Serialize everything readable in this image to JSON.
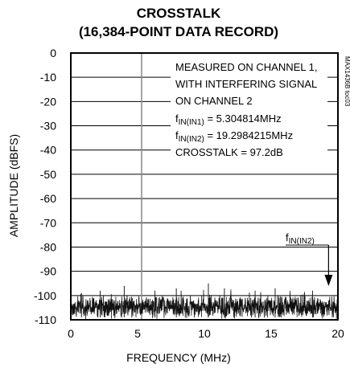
{
  "chart_data": {
    "type": "line",
    "title_line1": "CROSSTALK",
    "title_line2": "(16,384-POINT DATA RECORD)",
    "xlabel": "FREQUENCY (MHz)",
    "ylabel": "AMPLITUDE (dBFS)",
    "xlim": [
      0,
      20
    ],
    "ylim": [
      -110,
      0
    ],
    "x_ticks": [
      "0",
      "5",
      "10",
      "15",
      "20"
    ],
    "y_ticks": [
      "0",
      "-10",
      "-20",
      "-30",
      "-40",
      "-50",
      "-60",
      "-70",
      "-80",
      "-90",
      "-100",
      "-110"
    ],
    "grid": "horizontal",
    "fundamental_marker_x": 5.3,
    "noise_floor_dbfs": -104,
    "spurs": [
      {
        "x": 0.8,
        "y": -99
      },
      {
        "x": 2.2,
        "y": -98
      },
      {
        "x": 4.0,
        "y": -96
      },
      {
        "x": 6.3,
        "y": -98
      },
      {
        "x": 7.9,
        "y": -97
      },
      {
        "x": 10.3,
        "y": -95
      },
      {
        "x": 11.5,
        "y": -97
      },
      {
        "x": 13.8,
        "y": -98
      },
      {
        "x": 15.3,
        "y": -97
      },
      {
        "x": 18.1,
        "y": -98
      }
    ],
    "annotation": {
      "line1": "MEASURED ON CHANNEL 1,",
      "line2": "WITH INTERFERING SIGNAL",
      "line3": "ON CHANNEL 2",
      "fin1_f": "f",
      "fin1_sub": "IN(IN1)",
      "fin1_val": " = 5.304814MHz",
      "fin2_f": "f",
      "fin2_sub": "IN(IN2)",
      "fin2_val": " = 19.2984215MHz",
      "crosstalk": "CROSSTALK = 97.2dB"
    },
    "arrow_label_f": "f",
    "arrow_label_sub": "IN(IN2)",
    "arrow_x": 19.3,
    "figure_code": "MAX1436B toc03"
  }
}
